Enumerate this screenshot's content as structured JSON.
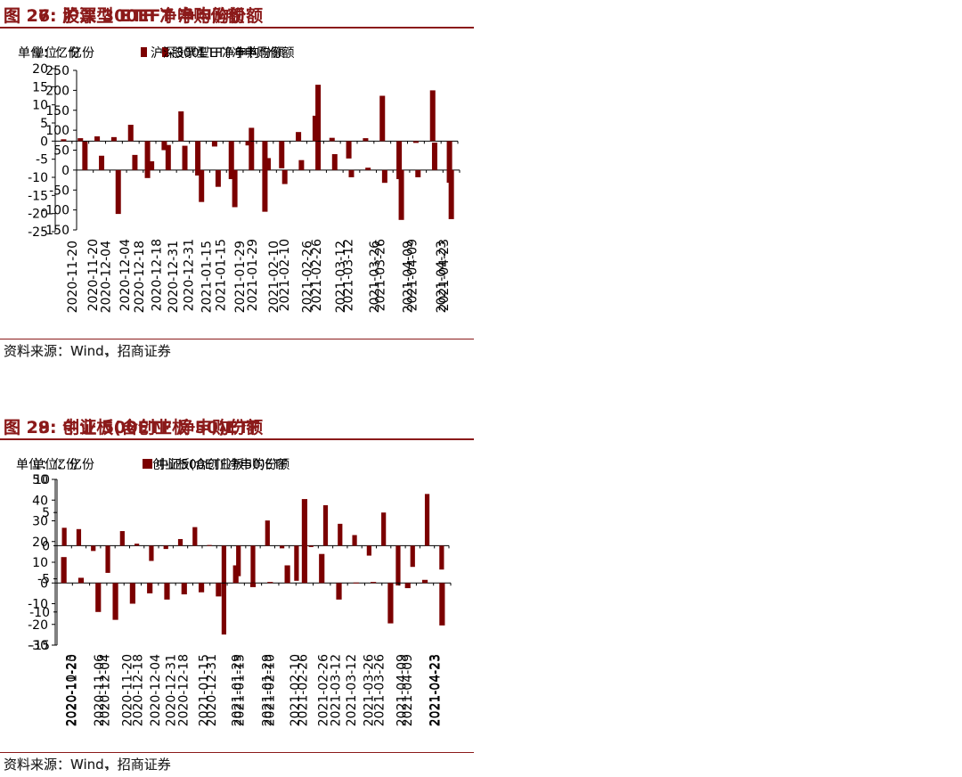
{
  "bar_color": "#7b0000",
  "accent_color": "#8b1a1a",
  "panels": [
    {
      "title": "图 26:  股票型 ETF 净申购份额",
      "unit": "单位：亿份",
      "source": "资料来源：Wind、招商证券",
      "chart_data": {
        "type": "bar",
        "legend": "股票型ETF净申购份额",
        "ylim": [
          -150,
          250
        ],
        "yticks": [
          250,
          200,
          150,
          100,
          50,
          0,
          -50,
          -100,
          -150
        ],
        "ytick_labels": [
          "250",
          "200",
          "150",
          "100",
          "50",
          "0",
          "-50",
          "-100",
          "-150"
        ],
        "xtick_labels": [
          "2020-11-20",
          "2020-12-04",
          "2020-12-18",
          "2020-12-31",
          "2021-01-15",
          "2021-01-29",
          "2021-02-10",
          "2021-02-26",
          "2021-03-12",
          "2021-03-26",
          "2021-04-09",
          "2021-04-23"
        ],
        "values": [
          72,
          36,
          -110,
          38,
          22,
          63,
          61,
          -80,
          -42,
          -93,
          106,
          30,
          -35,
          25,
          214,
          40,
          -18,
          6,
          -32,
          -125,
          -18,
          69,
          -123
        ]
      }
    },
    {
      "title": "图 27:  沪深 300EFT 净申购份额",
      "unit": "单位：亿份",
      "source": "资料来源：Wind，招商证券",
      "chart_data": {
        "type": "bar",
        "legend": "沪深300ETF净申购份额",
        "ylim": [
          -25,
          20
        ],
        "yticks": [
          20,
          15,
          10,
          5,
          0,
          -5,
          -10,
          -15,
          -20,
          -25
        ],
        "ytick_labels": [
          "20",
          "15",
          "10",
          "5",
          "0",
          "-5",
          "-10",
          "-15",
          "-20",
          "-25"
        ],
        "xtick_labels": [
          "2020-11-20",
          "2020-12-04",
          "2020-12-18",
          "2020-12-31",
          "2021-01-15",
          "2021-01-29",
          "2021-02-10",
          "2021-02-26",
          "2021-03-12",
          "2021-03-26",
          "2021-04-09",
          "2021-04-23"
        ],
        "values": [
          0.5,
          0.8,
          1.3,
          1.1,
          4.5,
          -10.2,
          -2.5,
          8.2,
          -9.5,
          -1.5,
          -10.5,
          -1.2,
          -19.5,
          -7.5,
          2.5,
          7.0,
          0.9,
          -4.8,
          0.8,
          12.5,
          -10.5,
          -0.5,
          14.0,
          -11.5
        ]
      }
    },
    {
      "title": "图 28:  中证 500ETF 净申购份额",
      "unit": "单位：亿份",
      "source": "资料来源：Wind、招商证券",
      "chart_data": {
        "type": "bar",
        "legend": "中证500ETF净申购份额",
        "ylim": [
          -15,
          10
        ],
        "yticks": [
          10,
          5,
          0,
          -5,
          -10,
          -15
        ],
        "ytick_labels": [
          "10",
          "5",
          "0",
          "-5",
          "-10",
          "-15"
        ],
        "xtick_labels": [
          "2020-10-23",
          "2020-11-06",
          "2020-11-20",
          "2020-12-04",
          "2020-12-18",
          "2020-12-31",
          "2021-01-15",
          "2021-01-29",
          "2021-02-10",
          "2021-02-26",
          "2021-03-12",
          "2021-03-26",
          "2021-04-09",
          "2021-04-23"
        ],
        "values": [
          2.7,
          2.5,
          -0.8,
          -4.1,
          2.2,
          0.3,
          -2.3,
          -0.5,
          1.0,
          2.8,
          0.1,
          -13.4,
          -4.6,
          -6.2,
          3.8,
          -0.4,
          -5.3,
          -0.2,
          6.1,
          3.3,
          1.6,
          -1.5,
          5.0,
          -6.0,
          -3.2,
          7.8,
          -3.6
        ]
      }
    },
    {
      "title": "图 29:  创业板(含创业板 50)ETF",
      "unit": "单位：亿份",
      "source": "资料来源：Wind，招商证券",
      "chart_data": {
        "type": "bar",
        "legend": "创业板(含创业板50)ETF",
        "ylim": [
          -30,
          50
        ],
        "yticks": [
          50,
          40,
          30,
          20,
          10,
          0,
          -10,
          -20,
          -30
        ],
        "ytick_labels": [
          "50",
          "40",
          "30",
          "20",
          "10",
          "0",
          "-10",
          "-20",
          "-30"
        ],
        "xtick_labels": [
          "2020-11-20",
          "2020-12-04",
          "2020-12-18",
          "2020-12-31",
          "2021-01-15",
          "2021-01-29",
          "2021-02-10",
          "2021-02-26",
          "2021-03-12",
          "2021-03-26",
          "2021-04-09",
          "2021-04-23"
        ],
        "values": [
          12.5,
          2.5,
          -14.0,
          -17.8,
          -10.0,
          -5.0,
          -8.0,
          -5.5,
          -4.5,
          -6.5,
          8.5,
          -2.0,
          0.5,
          8.5,
          40.5,
          14.0,
          -8.0,
          0.2,
          0.5,
          -19.5,
          -2.5,
          1.5,
          -20.5
        ]
      }
    }
  ]
}
